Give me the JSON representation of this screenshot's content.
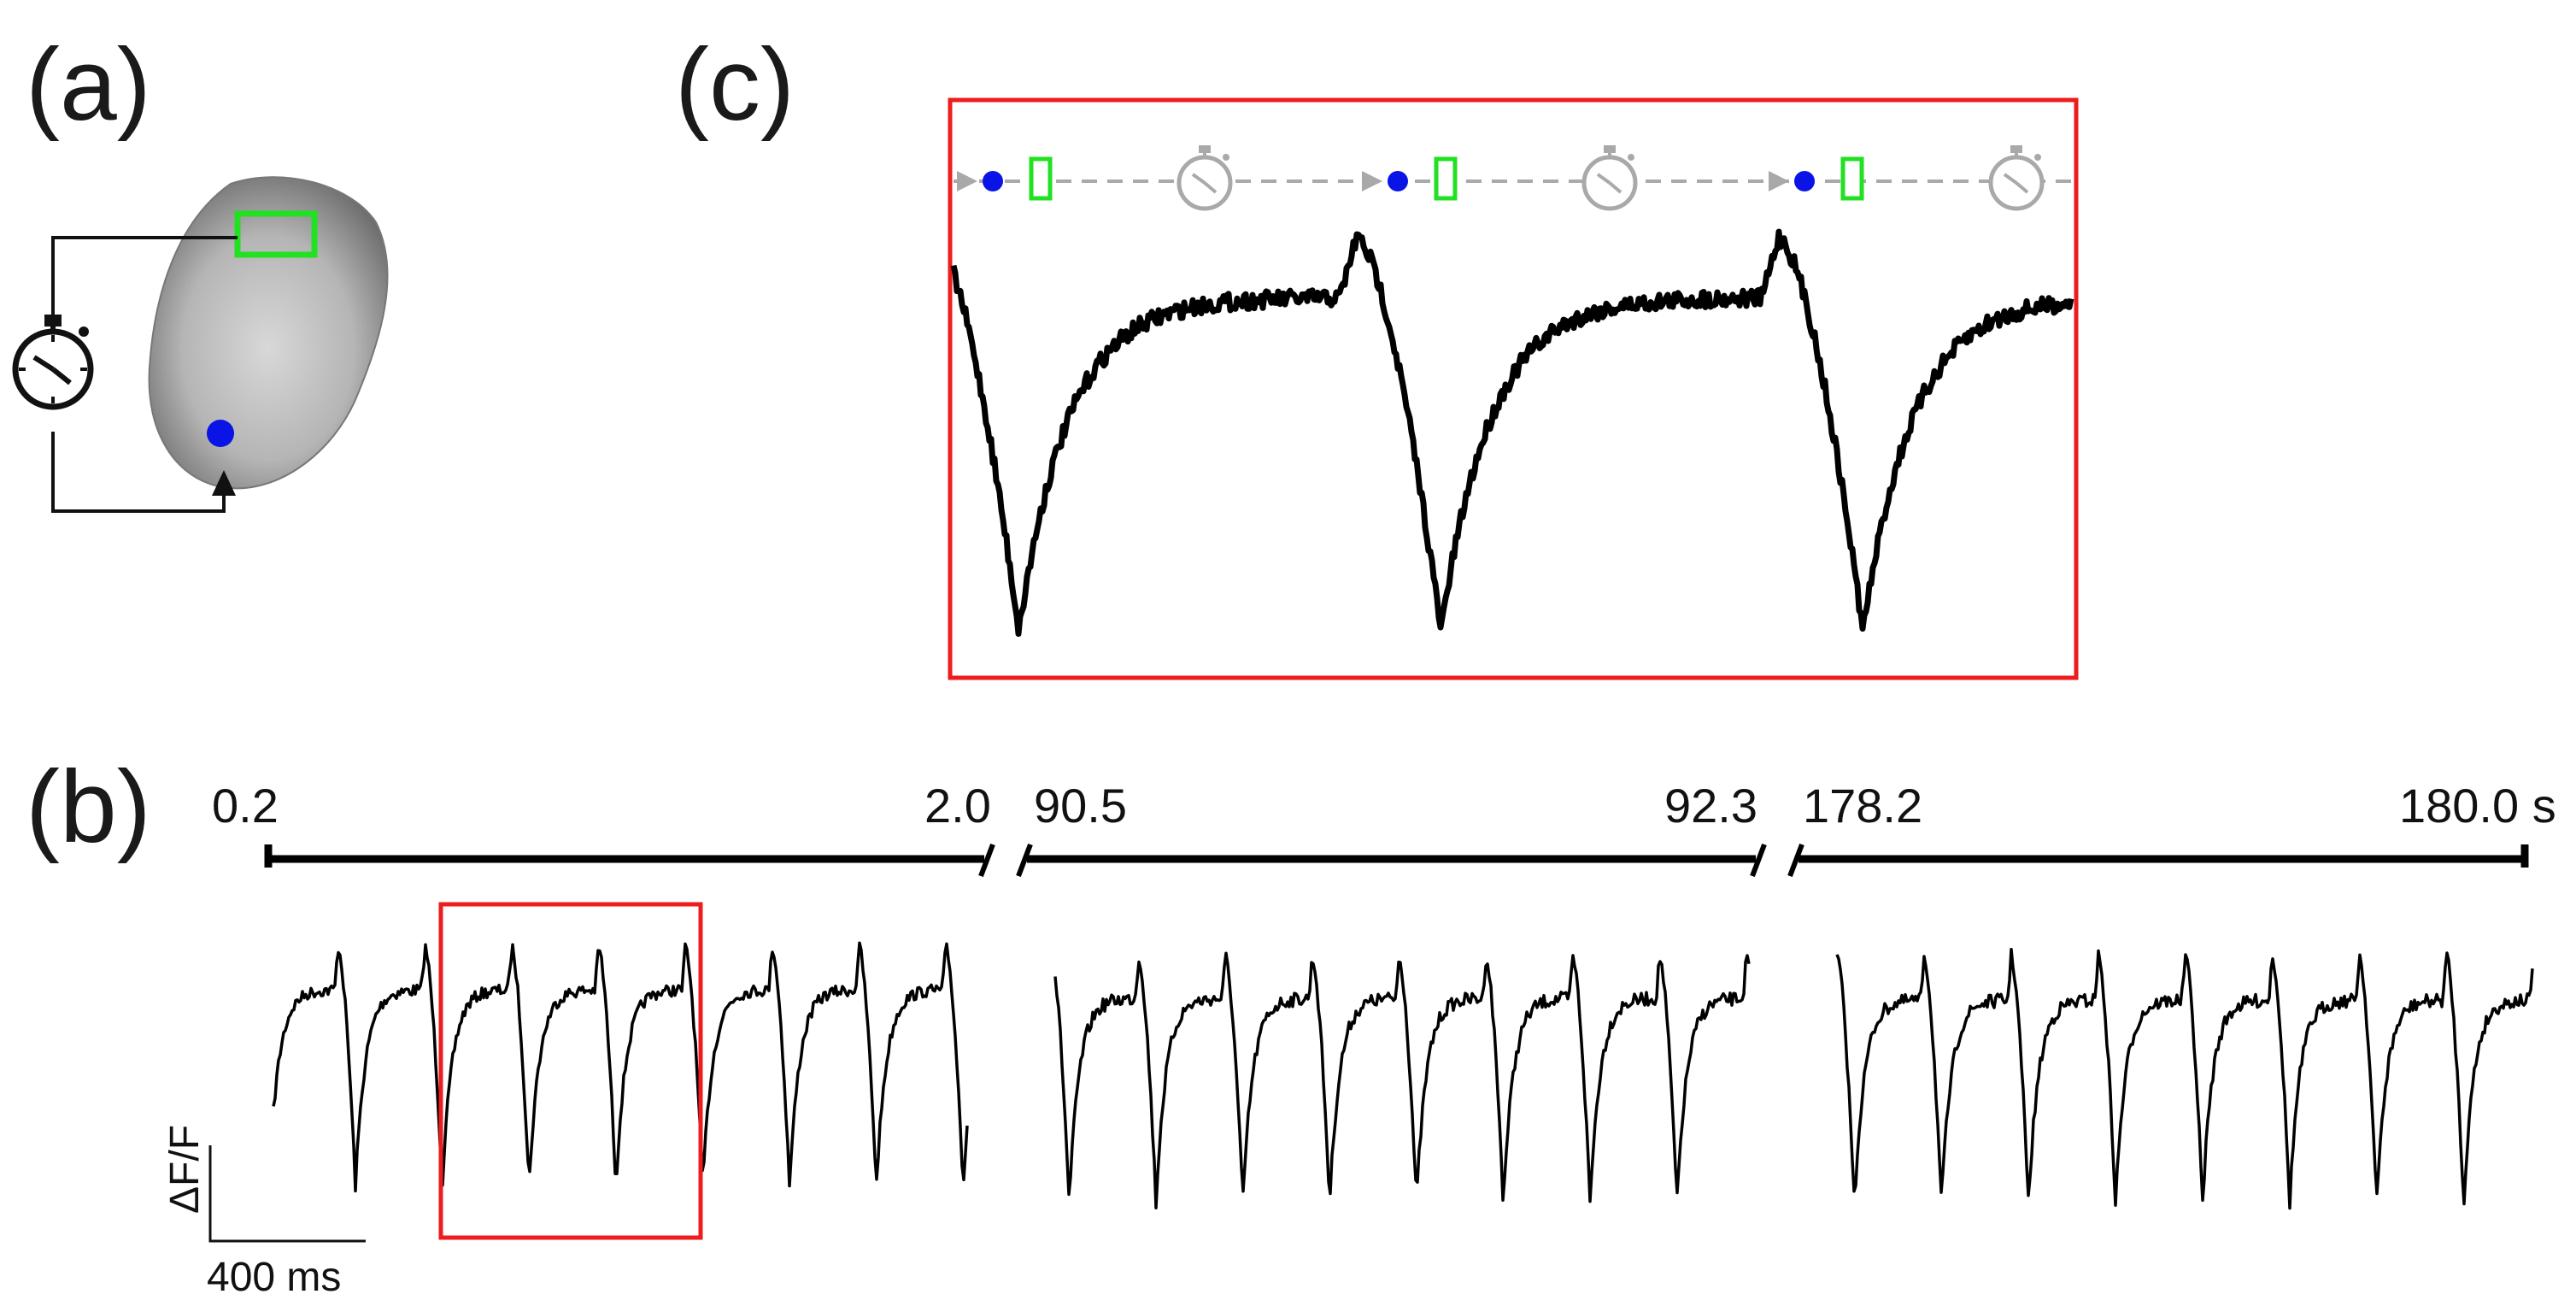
{
  "panels": {
    "a": "(a)",
    "b": "(b)",
    "c": "(c)"
  },
  "timeline": {
    "segments": [
      {
        "start": "0.2",
        "end": "2.0"
      },
      {
        "start": "90.5",
        "end": "92.3"
      },
      {
        "start": "178.2",
        "end": "180.0 s"
      }
    ]
  },
  "scale_bar": {
    "y_label": "ΔF/F",
    "x_label": "400 ms"
  },
  "colors": {
    "trace": "#000000",
    "highlight_box": "#ee1c1c",
    "stim_dot": "#0a14e6",
    "roi_box": "#22e022",
    "timer_gray": "#a9a9a9"
  },
  "icons": {
    "timer": "stopwatch-icon",
    "stim_site": "blue-dot-stimulation-site",
    "roi": "green-rectangle-roi"
  },
  "chart_data": {
    "type": "line",
    "xlabel": "",
    "ylabel": "ΔF/F",
    "x_ticks": [
      "0.2",
      "2.0",
      "90.5",
      "92.3",
      "178.2",
      "180.0 s"
    ],
    "series": [
      {
        "segment": "0.2–2.0 s",
        "beats": 8,
        "beat_interval_ms": 230
      },
      {
        "segment": "90.5–92.3 s",
        "beats": 8,
        "beat_interval_ms": 230
      },
      {
        "segment": "178.2–180.0 s",
        "beats": 8,
        "beat_interval_ms": 230
      }
    ],
    "scale": {
      "time_ms": 400
    }
  }
}
